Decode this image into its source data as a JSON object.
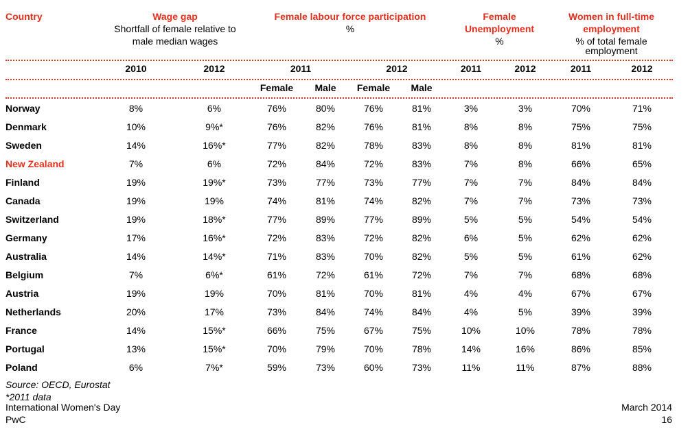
{
  "headers": {
    "country": "Country",
    "wage_gap": "Wage gap",
    "wage_gap_sub1": "Shortfall of female relative to",
    "wage_gap_sub2": "male median wages",
    "flp": "Female labour force participation",
    "flp_sub": "%",
    "fu1": "Female",
    "fu2": "Unemployment",
    "fu_sub": "%",
    "wft1": "Women in full-time",
    "wft2": "employment",
    "wft_sub1": "% of total female",
    "wft_sub2": "employment"
  },
  "years": [
    "2010",
    "2012",
    "2011",
    "2012",
    "2011",
    "2012",
    "2011",
    "2012"
  ],
  "subheaders": [
    "Female",
    "Male",
    "Female",
    "Male"
  ],
  "highlight_color": "#e0301e",
  "rows": [
    {
      "country": "Norway",
      "highlight": false,
      "values": [
        "8%",
        "6%",
        "76%",
        "80%",
        "76%",
        "81%",
        "3%",
        "3%",
        "70%",
        "71%"
      ]
    },
    {
      "country": "Denmark",
      "highlight": false,
      "values": [
        "10%",
        "9%*",
        "76%",
        "82%",
        "76%",
        "81%",
        "8%",
        "8%",
        "75%",
        "75%"
      ]
    },
    {
      "country": "Sweden",
      "highlight": false,
      "values": [
        "14%",
        "16%*",
        "77%",
        "82%",
        "78%",
        "83%",
        "8%",
        "8%",
        "81%",
        "81%"
      ]
    },
    {
      "country": "New Zealand",
      "highlight": true,
      "values": [
        "7%",
        "6%",
        "72%",
        "84%",
        "72%",
        "83%",
        "7%",
        "8%",
        "66%",
        "65%"
      ]
    },
    {
      "country": "Finland",
      "highlight": false,
      "values": [
        "19%",
        "19%*",
        "73%",
        "77%",
        "73%",
        "77%",
        "7%",
        "7%",
        "84%",
        "84%"
      ]
    },
    {
      "country": "Canada",
      "highlight": false,
      "values": [
        "19%",
        "19%",
        "74%",
        "81%",
        "74%",
        "82%",
        "7%",
        "7%",
        "73%",
        "73%"
      ]
    },
    {
      "country": "Switzerland",
      "highlight": false,
      "values": [
        "19%",
        "18%*",
        "77%",
        "89%",
        "77%",
        "89%",
        "5%",
        "5%",
        "54%",
        "54%"
      ]
    },
    {
      "country": "Germany",
      "highlight": false,
      "values": [
        "17%",
        "16%*",
        "72%",
        "83%",
        "72%",
        "82%",
        "6%",
        "5%",
        "62%",
        "62%"
      ]
    },
    {
      "country": "Australia",
      "highlight": false,
      "values": [
        "14%",
        "14%*",
        "71%",
        "83%",
        "70%",
        "82%",
        "5%",
        "5%",
        "61%",
        "62%"
      ]
    },
    {
      "country": "Belgium",
      "highlight": false,
      "values": [
        "7%",
        "6%*",
        "61%",
        "72%",
        "61%",
        "72%",
        "7%",
        "7%",
        "68%",
        "68%"
      ]
    },
    {
      "country": "Austria",
      "highlight": false,
      "values": [
        "19%",
        "19%",
        "70%",
        "81%",
        "70%",
        "81%",
        "4%",
        "4%",
        "67%",
        "67%"
      ]
    },
    {
      "country": "Netherlands",
      "highlight": false,
      "values": [
        "20%",
        "17%",
        "73%",
        "84%",
        "74%",
        "84%",
        "4%",
        "5%",
        "39%",
        "39%"
      ]
    },
    {
      "country": "France",
      "highlight": false,
      "values": [
        "14%",
        "15%*",
        "66%",
        "75%",
        "67%",
        "75%",
        "10%",
        "10%",
        "78%",
        "78%"
      ]
    },
    {
      "country": "Portugal",
      "highlight": false,
      "values": [
        "13%",
        "15%*",
        "70%",
        "79%",
        "70%",
        "78%",
        "14%",
        "16%",
        "86%",
        "85%"
      ]
    },
    {
      "country": "Poland",
      "highlight": false,
      "values": [
        "6%",
        "7%*",
        "59%",
        "73%",
        "60%",
        "73%",
        "11%",
        "11%",
        "87%",
        "88%"
      ]
    }
  ],
  "source": "Source: OECD, Eurostat",
  "note": "*2011 data",
  "footer": {
    "left1": "International Women's Day",
    "left2": "PwC",
    "right1": "March 2014",
    "right2": "16"
  }
}
